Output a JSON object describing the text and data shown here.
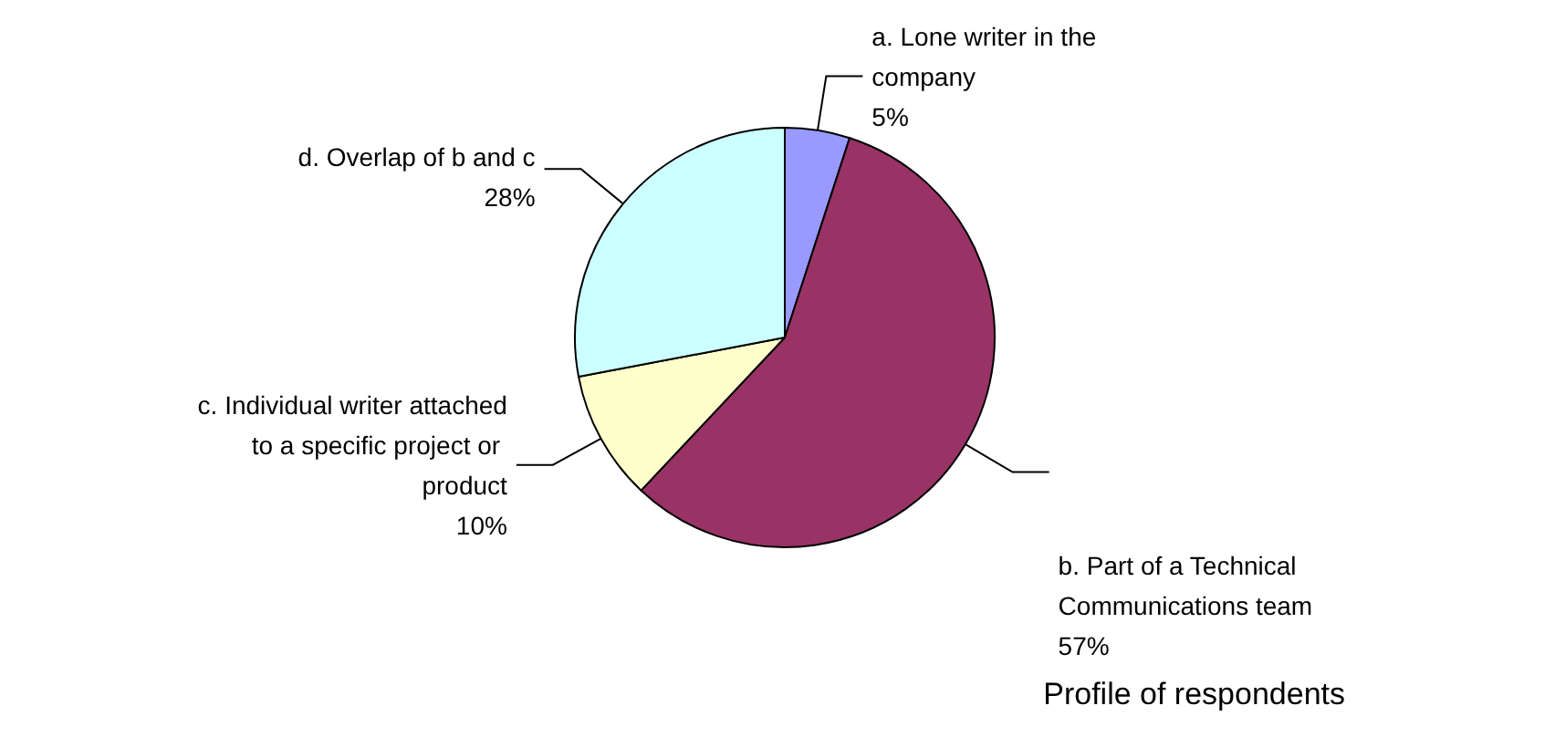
{
  "chart_data": {
    "type": "pie",
    "title": "Profile of respondents",
    "categories": [
      "a. Lone writer in the company",
      "b. Part of a Technical Communications team",
      "c. Individual writer attached to a specific project or product",
      "d. Overlap of b and c"
    ],
    "values": [
      5,
      57,
      10,
      28
    ],
    "colors": [
      "#9999ff",
      "#993366",
      "#ffffcc",
      "#ccffff"
    ],
    "value_labels": [
      "5%",
      "57%",
      "10%",
      "28%"
    ],
    "legend": false
  }
}
